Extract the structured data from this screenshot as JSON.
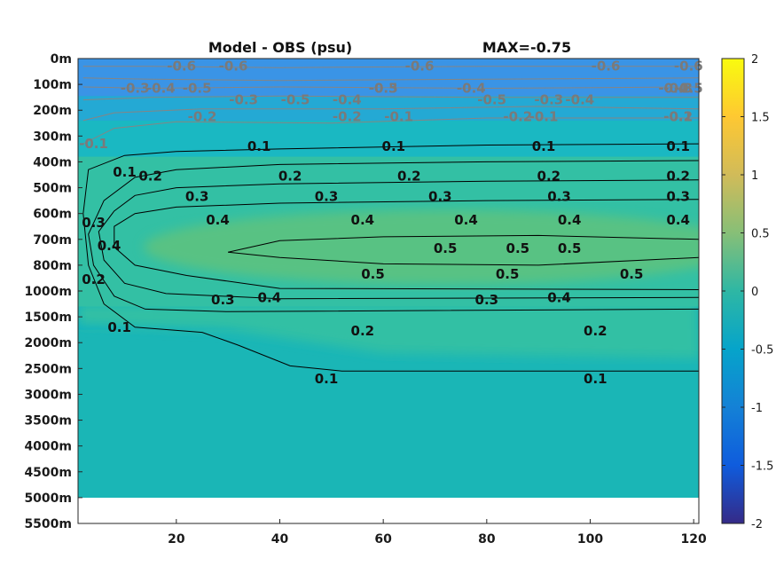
{
  "chart_data": {
    "type": "heatmap",
    "title": "Model - OBS (psu)",
    "max_label": "MAX=-0.75",
    "xlabel": "",
    "ylabel": "",
    "xlim": [
      1,
      121
    ],
    "x_ticks": [
      20,
      40,
      60,
      80,
      100,
      120
    ],
    "y_ticks": [
      "0m",
      "100m",
      "200m",
      "300m",
      "400m",
      "500m",
      "600m",
      "700m",
      "800m",
      "1000m",
      "1500m",
      "2000m",
      "2500m",
      "3000m",
      "3500m",
      "4000m",
      "4500m",
      "5000m",
      "5500m"
    ],
    "data_bottom_depth_label": "5000m",
    "colorbar": {
      "range": [
        -2,
        2
      ],
      "ticks": [
        2,
        1.5,
        1,
        0.5,
        0,
        -0.5,
        -1,
        -1.5,
        -2
      ],
      "colormap": "parula",
      "stops": [
        "#352a87",
        "#0f5cdd",
        "#1481d6",
        "#06a4ca",
        "#2eb7a4",
        "#87bf77",
        "#d1bb59",
        "#fec832",
        "#f9fb0e"
      ]
    },
    "field_colors": {
      "surface": "#3a94e6",
      "upper": "#24a9d4",
      "thermocline": "#1ab8c2",
      "intermediate": "#33c0a4",
      "core": "#58c283",
      "deep": "#1ab6b6",
      "abyss": "#10b2be"
    },
    "contours_positive": [
      {
        "level": 0.1,
        "labels": [
          {
            "text": "0.1",
            "x": 10,
            "depth": "400m"
          },
          {
            "text": "0.1",
            "x": 36,
            "depth": "300m"
          },
          {
            "text": "0.1",
            "x": 62,
            "depth": "300m"
          },
          {
            "text": "0.1",
            "x": 91,
            "depth": "300m"
          },
          {
            "text": "0.1",
            "x": 117,
            "depth": "300m"
          },
          {
            "text": "0.1",
            "x": 9,
            "depth": "1500m"
          },
          {
            "text": "0.1",
            "x": 49,
            "depth": "2500m"
          },
          {
            "text": "0.1",
            "x": 101,
            "depth": "2500m"
          }
        ]
      },
      {
        "level": 0.2,
        "labels": [
          {
            "text": "0.2",
            "x": 15,
            "depth": "400m"
          },
          {
            "text": "0.2",
            "x": 42,
            "depth": "400m"
          },
          {
            "text": "0.2",
            "x": 65,
            "depth": "400m"
          },
          {
            "text": "0.2",
            "x": 92,
            "depth": "400m"
          },
          {
            "text": "0.2",
            "x": 117,
            "depth": "400m"
          },
          {
            "text": "0.2",
            "x": 4,
            "depth": "800m"
          },
          {
            "text": "0.2",
            "x": 56,
            "depth": "1500m"
          },
          {
            "text": "0.2",
            "x": 101,
            "depth": "1500m"
          }
        ]
      },
      {
        "level": 0.3,
        "labels": [
          {
            "text": "0.3",
            "x": 24,
            "depth": "500m"
          },
          {
            "text": "0.3",
            "x": 49,
            "depth": "500m"
          },
          {
            "text": "0.3",
            "x": 71,
            "depth": "500m"
          },
          {
            "text": "0.3",
            "x": 94,
            "depth": "500m"
          },
          {
            "text": "0.3",
            "x": 117,
            "depth": "500m"
          },
          {
            "text": "0.3",
            "x": 4,
            "depth": "600m"
          },
          {
            "text": "0.3",
            "x": 29,
            "depth": "1000m"
          },
          {
            "text": "0.3",
            "x": 80,
            "depth": "1000m"
          }
        ]
      },
      {
        "level": 0.4,
        "labels": [
          {
            "text": "0.4",
            "x": 28,
            "depth": "600m"
          },
          {
            "text": "0.4",
            "x": 56,
            "depth": "600m"
          },
          {
            "text": "0.4",
            "x": 76,
            "depth": "600m"
          },
          {
            "text": "0.4",
            "x": 96,
            "depth": "600m"
          },
          {
            "text": "0.4",
            "x": 117,
            "depth": "600m"
          },
          {
            "text": "0.4",
            "x": 7,
            "depth": "700m"
          },
          {
            "text": "0.4",
            "x": 38,
            "depth": "1000m"
          },
          {
            "text": "0.4",
            "x": 94,
            "depth": "1000m"
          }
        ]
      },
      {
        "level": 0.5,
        "labels": [
          {
            "text": "0.5",
            "x": 72,
            "depth": "700m"
          },
          {
            "text": "0.5",
            "x": 86,
            "depth": "700m"
          },
          {
            "text": "0.5",
            "x": 96,
            "depth": "700m"
          },
          {
            "text": "0.5",
            "x": 58,
            "depth": "800m"
          },
          {
            "text": "0.5",
            "x": 84,
            "depth": "800m"
          },
          {
            "text": "0.5",
            "x": 108,
            "depth": "800m"
          }
        ]
      }
    ],
    "contours_negative": [
      {
        "level": -0.1,
        "labels": [
          {
            "text": "-0.1",
            "x": 63,
            "depth": "200m"
          },
          {
            "text": "-0.1",
            "x": 91,
            "depth": "200m"
          },
          {
            "text": "-0.1",
            "x": 117,
            "depth": "200m"
          },
          {
            "text": "-0.1",
            "x": 4,
            "depth": "300m"
          }
        ]
      },
      {
        "level": -0.2,
        "labels": [
          {
            "text": "-0.2",
            "x": 25,
            "depth": "200m"
          },
          {
            "text": "-0.2",
            "x": 53,
            "depth": "200m"
          },
          {
            "text": "-0.2",
            "x": 86,
            "depth": "200m"
          },
          {
            "text": "-0.2",
            "x": 117,
            "depth": "200m"
          }
        ]
      },
      {
        "level": -0.3,
        "labels": [
          {
            "text": "-0.3",
            "x": 12,
            "depth": "100m"
          },
          {
            "text": "-0.3",
            "x": 33,
            "depth": "100m"
          },
          {
            "text": "-0.3",
            "x": 60,
            "depth": "100m"
          },
          {
            "text": "-0.3",
            "x": 92,
            "depth": "100m"
          },
          {
            "text": "-0.3",
            "x": 117,
            "depth": "100m"
          }
        ]
      },
      {
        "level": -0.4,
        "labels": [
          {
            "text": "-0.4",
            "x": 17,
            "depth": "100m"
          },
          {
            "text": "-0.4",
            "x": 53,
            "depth": "100m"
          },
          {
            "text": "-0.4",
            "x": 77,
            "depth": "100m"
          },
          {
            "text": "-0.4",
            "x": 98,
            "depth": "100m"
          },
          {
            "text": "-0.4",
            "x": 116,
            "depth": "100m"
          }
        ]
      },
      {
        "level": -0.5,
        "labels": [
          {
            "text": "-0.5",
            "x": 24,
            "depth": "100m"
          },
          {
            "text": "-0.5",
            "x": 43,
            "depth": "100m"
          },
          {
            "text": "-0.5",
            "x": 60,
            "depth": "100m"
          },
          {
            "text": "-0.5",
            "x": 81,
            "depth": "100m"
          },
          {
            "text": "-0.5",
            "x": 119,
            "depth": "100m"
          }
        ]
      },
      {
        "level": -0.6,
        "labels": [
          {
            "text": "-0.6",
            "x": 21,
            "depth": "0m"
          },
          {
            "text": "-0.6",
            "x": 31,
            "depth": "0m"
          },
          {
            "text": "-0.6",
            "x": 67,
            "depth": "0m"
          },
          {
            "text": "-0.6",
            "x": 103,
            "depth": "0m"
          },
          {
            "text": "-0.6",
            "x": 119,
            "depth": "0m"
          }
        ]
      }
    ]
  }
}
